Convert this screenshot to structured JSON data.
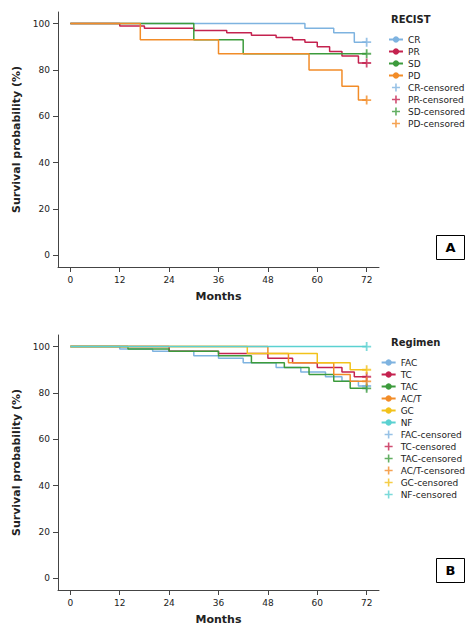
{
  "chart_data": [
    {
      "type": "line",
      "panel_label": "A",
      "legend_title": "RECIST",
      "x_label": "Months",
      "y_label": "Survival probability (%)",
      "xlim": [
        -3,
        75
      ],
      "xticks": [
        0,
        12,
        24,
        36,
        48,
        60,
        72
      ],
      "ylim": [
        -5,
        105
      ],
      "yticks": [
        0,
        20,
        40,
        60,
        80,
        100
      ],
      "grid": false,
      "legend": "upper right",
      "series": [
        {
          "name": "CR",
          "color": "#7eb3e0",
          "type": "line",
          "line_style": "step",
          "x": [
            0,
            57,
            64,
            69,
            72
          ],
          "values": [
            100,
            98,
            96,
            92,
            92
          ]
        },
        {
          "name": "PR",
          "color": "#c4224f",
          "type": "line",
          "line_style": "step",
          "x": [
            0,
            12,
            18,
            30,
            38,
            44,
            50,
            54,
            57,
            60,
            63,
            66,
            70,
            72
          ],
          "values": [
            100,
            99,
            98,
            97,
            96,
            95,
            94,
            93,
            92,
            90,
            88,
            86,
            83,
            83
          ]
        },
        {
          "name": "SD",
          "color": "#3c9b3c",
          "type": "line",
          "line_style": "step",
          "x": [
            0,
            30,
            42,
            72
          ],
          "values": [
            100,
            93,
            87,
            87
          ]
        },
        {
          "name": "PD",
          "color": "#f28c28",
          "type": "line",
          "line_style": "step",
          "x": [
            0,
            17,
            36,
            58,
            66,
            70,
            72
          ],
          "values": [
            100,
            93,
            87,
            80,
            73,
            67,
            67
          ]
        },
        {
          "name": "CR-censored",
          "color": "#7eb3e0",
          "type": "scatter",
          "marker": "plus",
          "x": [
            72
          ],
          "values": [
            92
          ]
        },
        {
          "name": "PR-censored",
          "color": "#c4224f",
          "type": "scatter",
          "marker": "plus",
          "x": [
            72
          ],
          "values": [
            83
          ]
        },
        {
          "name": "SD-censored",
          "color": "#3c9b3c",
          "type": "scatter",
          "marker": "plus",
          "x": [
            72
          ],
          "values": [
            87
          ]
        },
        {
          "name": "PD-censored",
          "color": "#f28c28",
          "type": "scatter",
          "marker": "plus",
          "x": [
            72
          ],
          "values": [
            67
          ]
        }
      ]
    },
    {
      "type": "line",
      "panel_label": "B",
      "legend_title": "Regimen",
      "x_label": "Months",
      "y_label": "Survival probability (%)",
      "xlim": [
        -3,
        75
      ],
      "xticks": [
        0,
        12,
        24,
        36,
        48,
        60,
        72
      ],
      "ylim": [
        -5,
        105
      ],
      "yticks": [
        0,
        20,
        40,
        60,
        80,
        100
      ],
      "grid": false,
      "legend": "upper right",
      "series": [
        {
          "name": "FAC",
          "color": "#7eb3e0",
          "type": "line",
          "line_style": "step",
          "x": [
            0,
            12,
            20,
            30,
            36,
            42,
            50,
            56,
            62,
            66,
            70,
            72
          ],
          "values": [
            100,
            99,
            98,
            96,
            95,
            93,
            91,
            89,
            87,
            85,
            83,
            83
          ]
        },
        {
          "name": "TC",
          "color": "#c4224f",
          "type": "line",
          "line_style": "step",
          "x": [
            0,
            24,
            36,
            48,
            54,
            60,
            66,
            69,
            72
          ],
          "values": [
            100,
            98,
            97,
            95,
            93,
            91,
            89,
            87,
            87
          ]
        },
        {
          "name": "TAC",
          "color": "#3c9b3c",
          "type": "line",
          "line_style": "step",
          "x": [
            0,
            14,
            24,
            36,
            44,
            52,
            58,
            64,
            68,
            72
          ],
          "values": [
            100,
            99,
            98,
            96,
            93,
            91,
            88,
            85,
            82,
            82
          ]
        },
        {
          "name": "AC/T",
          "color": "#f28c28",
          "type": "line",
          "line_style": "step",
          "x": [
            0,
            48,
            53,
            64,
            68,
            72
          ],
          "values": [
            100,
            97,
            93,
            88,
            85,
            85
          ]
        },
        {
          "name": "GC",
          "color": "#f2c21b",
          "type": "line",
          "line_style": "step",
          "x": [
            0,
            43,
            60,
            68,
            72
          ],
          "values": [
            100,
            97,
            93,
            90,
            90
          ]
        },
        {
          "name": "NF",
          "color": "#5bd1d1",
          "type": "line",
          "line_style": "step",
          "x": [
            0,
            72
          ],
          "values": [
            100,
            100
          ]
        },
        {
          "name": "FAC-censored",
          "color": "#7eb3e0",
          "type": "scatter",
          "marker": "plus",
          "x": [
            72
          ],
          "values": [
            83
          ]
        },
        {
          "name": "TC-censored",
          "color": "#c4224f",
          "type": "scatter",
          "marker": "plus",
          "x": [
            72
          ],
          "values": [
            87
          ]
        },
        {
          "name": "TAC-censored",
          "color": "#3c9b3c",
          "type": "scatter",
          "marker": "plus",
          "x": [
            72
          ],
          "values": [
            82
          ]
        },
        {
          "name": "AC/T-censored",
          "color": "#f28c28",
          "type": "scatter",
          "marker": "plus",
          "x": [
            72
          ],
          "values": [
            85
          ]
        },
        {
          "name": "GC-censored",
          "color": "#f2c21b",
          "type": "scatter",
          "marker": "plus",
          "x": [
            72
          ],
          "values": [
            90
          ]
        },
        {
          "name": "NF-censored",
          "color": "#5bd1d1",
          "type": "scatter",
          "marker": "plus",
          "x": [
            72
          ],
          "values": [
            100
          ]
        }
      ]
    }
  ]
}
